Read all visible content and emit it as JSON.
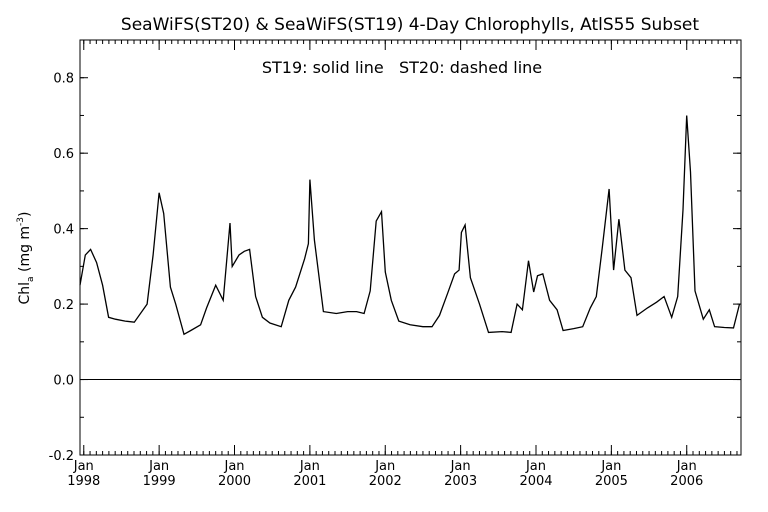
{
  "chart_data": {
    "type": "line",
    "title": "SeaWiFS(ST20) & SeaWiFS(ST19) 4-Day Chlorophylls, AtlS55 Subset",
    "annotation": "ST19: solid line   ST20: dashed line",
    "ylabel": {
      "main": "Chl",
      "sub": "a",
      "units_open": " (mg m",
      "units_sup": "-3",
      "units_close": ")"
    },
    "xlabel": "",
    "ylim": [
      -0.2,
      0.9
    ],
    "xlim": [
      1997.95,
      2006.72
    ],
    "yticks": [
      -0.2,
      0.0,
      0.2,
      0.4,
      0.6,
      0.8
    ],
    "ytick_labels": [
      "-0.2",
      "0.0",
      "0.2",
      "0.4",
      "0.6",
      "0.8"
    ],
    "xticks": [
      {
        "year": 1998,
        "month": "Jan",
        "label": "1998"
      },
      {
        "year": 1999,
        "month": "Jan",
        "label": "1999"
      },
      {
        "year": 2000,
        "month": "Jan",
        "label": "2000"
      },
      {
        "year": 2001,
        "month": "Jan",
        "label": "2001"
      },
      {
        "year": 2002,
        "month": "Jan",
        "label": "2002"
      },
      {
        "year": 2003,
        "month": "Jan",
        "label": "2003"
      },
      {
        "year": 2004,
        "month": "Jan",
        "label": "2004"
      },
      {
        "year": 2005,
        "month": "Jan",
        "label": "2005"
      },
      {
        "year": 2006,
        "month": "Jan",
        "label": "2006"
      }
    ],
    "reference_line": 0.0,
    "grid": false,
    "series": [
      {
        "style": "solid",
        "points": [
          [
            1997.95,
            0.25
          ],
          [
            1998.02,
            0.33
          ],
          [
            1998.09,
            0.345
          ],
          [
            1998.17,
            0.31
          ],
          [
            1998.25,
            0.25
          ],
          [
            1998.33,
            0.165
          ],
          [
            1998.42,
            0.16
          ],
          [
            1998.55,
            0.155
          ],
          [
            1998.67,
            0.152
          ],
          [
            1998.84,
            0.2
          ],
          [
            1998.92,
            0.33
          ],
          [
            1999.0,
            0.495
          ],
          [
            1999.06,
            0.44
          ],
          [
            1999.15,
            0.245
          ],
          [
            1999.22,
            0.2
          ],
          [
            1999.33,
            0.12
          ],
          [
            1999.42,
            0.13
          ],
          [
            1999.55,
            0.145
          ],
          [
            1999.63,
            0.19
          ],
          [
            1999.75,
            0.25
          ],
          [
            1999.85,
            0.21
          ],
          [
            1999.94,
            0.415
          ],
          [
            1999.97,
            0.3
          ],
          [
            2000.06,
            0.33
          ],
          [
            2000.13,
            0.34
          ],
          [
            2000.2,
            0.345
          ],
          [
            2000.28,
            0.22
          ],
          [
            2000.37,
            0.165
          ],
          [
            2000.47,
            0.15
          ],
          [
            2000.62,
            0.14
          ],
          [
            2000.72,
            0.21
          ],
          [
            2000.81,
            0.245
          ],
          [
            2000.93,
            0.32
          ],
          [
            2000.98,
            0.36
          ],
          [
            2001.0,
            0.53
          ],
          [
            2001.06,
            0.37
          ],
          [
            2001.18,
            0.18
          ],
          [
            2001.35,
            0.175
          ],
          [
            2001.5,
            0.18
          ],
          [
            2001.62,
            0.18
          ],
          [
            2001.72,
            0.175
          ],
          [
            2001.8,
            0.235
          ],
          [
            2001.88,
            0.42
          ],
          [
            2001.95,
            0.445
          ],
          [
            2002.0,
            0.285
          ],
          [
            2002.08,
            0.21
          ],
          [
            2002.18,
            0.155
          ],
          [
            2002.33,
            0.145
          ],
          [
            2002.5,
            0.14
          ],
          [
            2002.62,
            0.14
          ],
          [
            2002.72,
            0.17
          ],
          [
            2002.83,
            0.23
          ],
          [
            2002.92,
            0.28
          ],
          [
            2002.98,
            0.29
          ],
          [
            2003.01,
            0.39
          ],
          [
            2003.06,
            0.41
          ],
          [
            2003.13,
            0.27
          ],
          [
            2003.25,
            0.2
          ],
          [
            2003.37,
            0.125
          ],
          [
            2003.55,
            0.127
          ],
          [
            2003.67,
            0.125
          ],
          [
            2003.75,
            0.2
          ],
          [
            2003.82,
            0.185
          ],
          [
            2003.9,
            0.315
          ],
          [
            2003.97,
            0.232
          ],
          [
            2004.02,
            0.275
          ],
          [
            2004.09,
            0.28
          ],
          [
            2004.18,
            0.21
          ],
          [
            2004.28,
            0.185
          ],
          [
            2004.36,
            0.13
          ],
          [
            2004.5,
            0.135
          ],
          [
            2004.62,
            0.14
          ],
          [
            2004.72,
            0.19
          ],
          [
            2004.8,
            0.22
          ],
          [
            2004.88,
            0.35
          ],
          [
            2004.97,
            0.505
          ],
          [
            2005.03,
            0.29
          ],
          [
            2005.1,
            0.425
          ],
          [
            2005.18,
            0.29
          ],
          [
            2005.26,
            0.27
          ],
          [
            2005.34,
            0.17
          ],
          [
            2005.48,
            0.19
          ],
          [
            2005.6,
            0.205
          ],
          [
            2005.7,
            0.22
          ],
          [
            2005.8,
            0.165
          ],
          [
            2005.88,
            0.22
          ],
          [
            2005.95,
            0.45
          ],
          [
            2006.0,
            0.7
          ],
          [
            2006.05,
            0.55
          ],
          [
            2006.11,
            0.235
          ],
          [
            2006.22,
            0.16
          ],
          [
            2006.3,
            0.185
          ],
          [
            2006.37,
            0.14
          ],
          [
            2006.5,
            0.138
          ],
          [
            2006.62,
            0.137
          ],
          [
            2006.7,
            0.2
          ]
        ]
      }
    ]
  }
}
